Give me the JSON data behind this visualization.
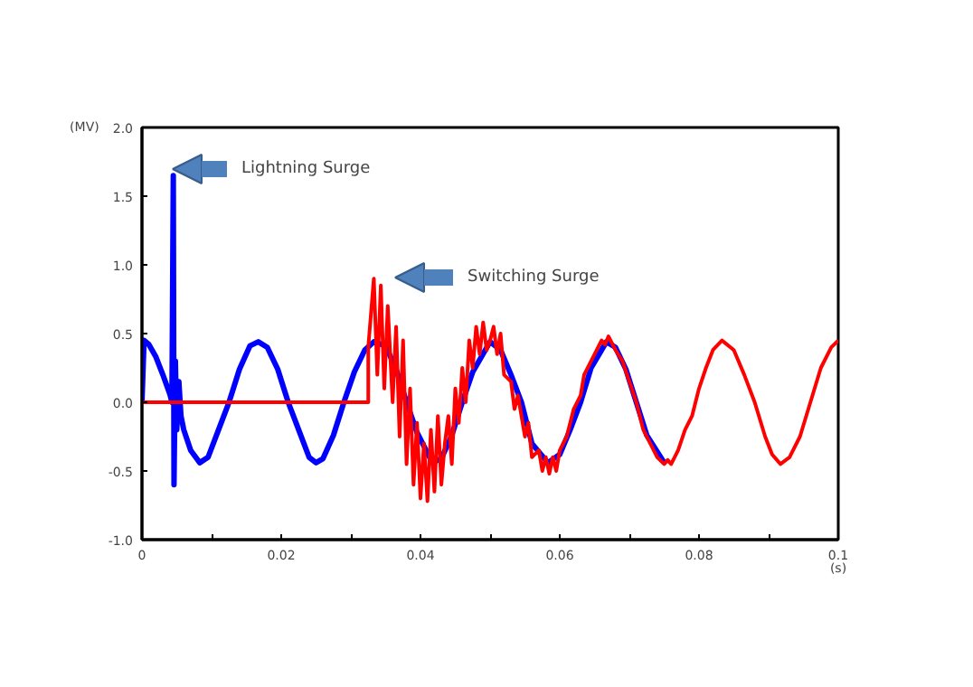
{
  "chart_data": {
    "type": "line",
    "xlabel": "(s)",
    "ylabel": "(MV)",
    "xlim": [
      0,
      0.1
    ],
    "ylim": [
      -1.0,
      2.0
    ],
    "xticks": [
      0,
      {
        "value": 0.01,
        "label": null
      },
      0.02,
      {
        "value": 0.03,
        "label": null
      },
      0.04,
      {
        "value": 0.05,
        "label": null
      },
      0.06,
      {
        "value": 0.07,
        "label": null
      },
      0.08,
      {
        "value": 0.09,
        "label": null
      },
      0.1
    ],
    "yticks": [
      {
        "value": -1.0,
        "label": "-1.0"
      },
      {
        "value": -0.5,
        "label": "-0.5"
      },
      {
        "value": 0.0,
        "label": "0.0"
      },
      {
        "value": 0.5,
        "label": "0.5"
      },
      {
        "value": 1.0,
        "label": "1.0"
      },
      {
        "value": 1.5,
        "label": "1.5"
      },
      {
        "value": 2.0,
        "label": "2.0"
      }
    ],
    "grid": false,
    "marker": "none",
    "line_style": "solid",
    "annotations": [
      "Lightning Surge",
      "Switching Surge"
    ],
    "series": [
      {
        "color": "#0000ff",
        "x": [
          0,
          0.0003,
          0.001,
          0.002,
          0.003,
          0.004,
          0.0043,
          0.0045,
          0.0046,
          0.0048,
          0.005,
          0.0053,
          0.0056,
          0.006,
          0.007,
          0.0083,
          0.0095,
          0.011,
          0.0125,
          0.014,
          0.0155,
          0.0167,
          0.018,
          0.0195,
          0.021,
          0.0225,
          0.024,
          0.025,
          0.026,
          0.0275,
          0.029,
          0.0305,
          0.032,
          0.0333,
          0.035,
          0.0365,
          0.038,
          0.0395,
          0.0417,
          0.043,
          0.0445,
          0.046,
          0.0475,
          0.05,
          0.0515,
          0.053,
          0.0545,
          0.056,
          0.0583,
          0.06,
          0.0615,
          0.063,
          0.0645,
          0.0667,
          0.068,
          0.0695,
          0.071,
          0.0725,
          0.075
        ],
        "values": [
          0.0,
          0.45,
          0.42,
          0.33,
          0.2,
          0.06,
          0.0,
          1.65,
          -0.6,
          0.3,
          -0.2,
          0.15,
          -0.1,
          -0.2,
          -0.35,
          -0.44,
          -0.4,
          -0.2,
          0.0,
          0.24,
          0.41,
          0.44,
          0.4,
          0.24,
          0.0,
          -0.2,
          -0.4,
          -0.44,
          -0.41,
          -0.24,
          0.0,
          0.22,
          0.38,
          0.44,
          0.41,
          0.24,
          0.0,
          -0.22,
          -0.44,
          -0.41,
          -0.24,
          0.0,
          0.22,
          0.44,
          0.38,
          0.2,
          0.0,
          -0.3,
          -0.44,
          -0.38,
          -0.2,
          0.0,
          0.25,
          0.44,
          0.4,
          0.24,
          0.0,
          -0.24,
          -0.44
        ]
      },
      {
        "color": "#ff0000",
        "x": [
          0,
          0.0325,
          0.0325,
          0.0333,
          0.0338,
          0.0343,
          0.0348,
          0.0353,
          0.036,
          0.0365,
          0.037,
          0.0375,
          0.038,
          0.0385,
          0.039,
          0.0395,
          0.04,
          0.0405,
          0.041,
          0.0415,
          0.042,
          0.0425,
          0.043,
          0.0435,
          0.044,
          0.0445,
          0.045,
          0.0455,
          0.046,
          0.0465,
          0.047,
          0.0475,
          0.048,
          0.0485,
          0.049,
          0.0495,
          0.05,
          0.0505,
          0.051,
          0.0515,
          0.052,
          0.053,
          0.0535,
          0.054,
          0.055,
          0.0555,
          0.056,
          0.057,
          0.0575,
          0.058,
          0.0585,
          0.059,
          0.0595,
          0.06,
          0.061,
          0.062,
          0.063,
          0.0635,
          0.065,
          0.066,
          0.0665,
          0.067,
          0.068,
          0.069,
          0.07,
          0.071,
          0.072,
          0.073,
          0.074,
          0.075,
          0.0755,
          0.076,
          0.077,
          0.078,
          0.079,
          0.08,
          0.081,
          0.082,
          0.0833,
          0.085,
          0.0865,
          0.088,
          0.0895,
          0.0905,
          0.0917,
          0.093,
          0.0945,
          0.096,
          0.0975,
          0.099,
          0.1
        ],
        "values": [
          0,
          0,
          0.4,
          0.9,
          0.2,
          0.85,
          0.1,
          0.7,
          0.0,
          0.55,
          -0.25,
          0.45,
          -0.45,
          0.1,
          -0.6,
          -0.15,
          -0.7,
          -0.3,
          -0.72,
          -0.2,
          -0.65,
          -0.1,
          -0.6,
          -0.3,
          -0.1,
          -0.45,
          0.1,
          -0.15,
          0.25,
          0.0,
          0.45,
          0.25,
          0.55,
          0.35,
          0.58,
          0.38,
          0.45,
          0.55,
          0.35,
          0.5,
          0.2,
          0.15,
          -0.05,
          0.05,
          -0.25,
          -0.15,
          -0.4,
          -0.35,
          -0.5,
          -0.4,
          -0.52,
          -0.4,
          -0.5,
          -0.35,
          -0.25,
          -0.05,
          0.05,
          0.2,
          0.35,
          0.45,
          0.42,
          0.48,
          0.38,
          0.3,
          0.15,
          0.0,
          -0.2,
          -0.3,
          -0.4,
          -0.45,
          -0.42,
          -0.45,
          -0.35,
          -0.2,
          -0.1,
          0.1,
          0.25,
          0.38,
          0.45,
          0.38,
          0.2,
          0.0,
          -0.25,
          -0.38,
          -0.45,
          -0.4,
          -0.25,
          0.0,
          0.25,
          0.4,
          0.45
        ]
      }
    ]
  }
}
